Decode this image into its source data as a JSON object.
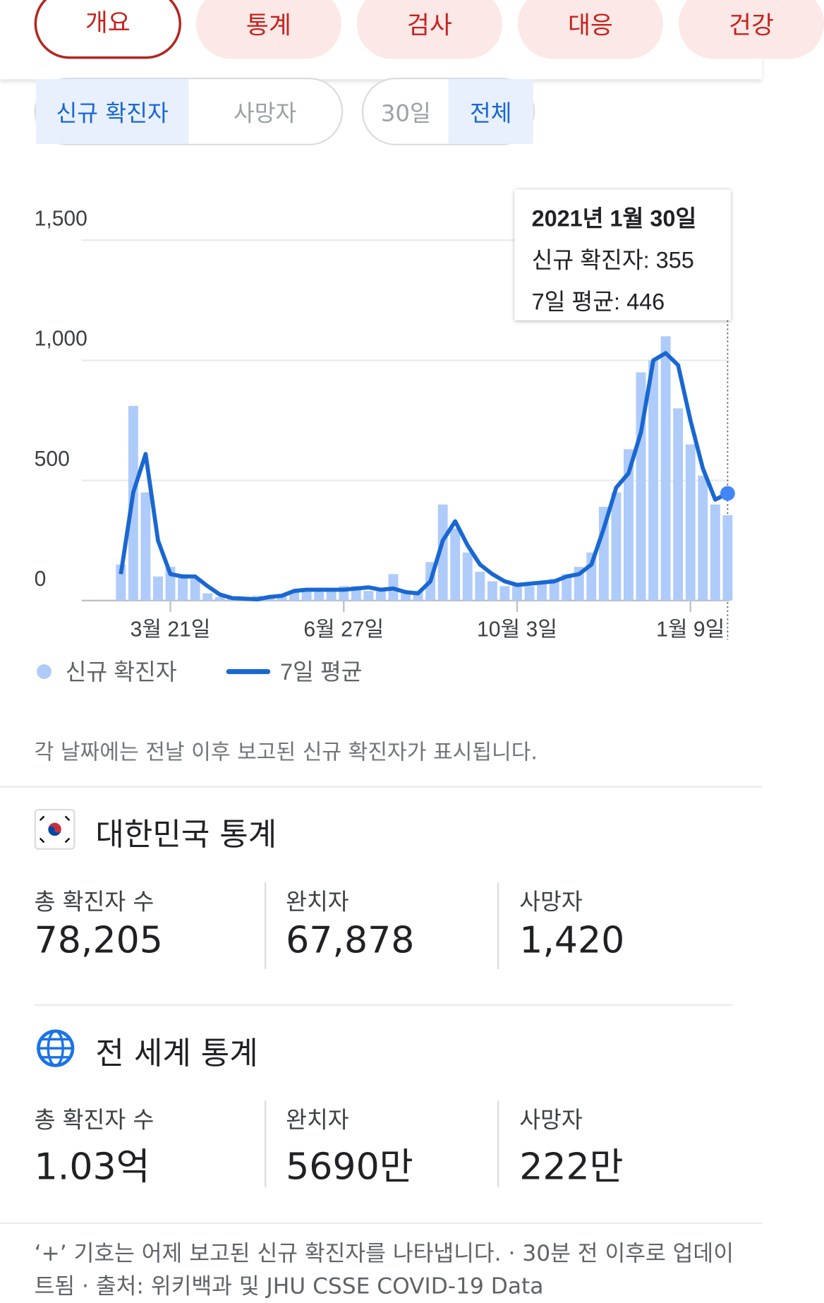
{
  "tabs": [
    "개요",
    "통계",
    "검사",
    "대응",
    "건강"
  ],
  "metric_toggle": [
    "신규 확진자",
    "사망자"
  ],
  "range_toggle": [
    "30일",
    "전체"
  ],
  "chart_data": {
    "type": "bar-line",
    "categories": [
      null,
      null,
      null,
      null,
      "3월 21일",
      null,
      null,
      null,
      null,
      null,
      null,
      null,
      null,
      null,
      null,
      null,
      null,
      null,
      "6월 27일",
      null,
      null,
      null,
      null,
      null,
      null,
      null,
      null,
      null,
      null,
      null,
      null,
      null,
      "10월 3일",
      null,
      null,
      null,
      null,
      null,
      null,
      null,
      null,
      null,
      null,
      null,
      null,
      null,
      "1월 9일",
      null,
      null,
      null
    ],
    "series": [
      {
        "name": "신규 확진자",
        "type": "bar",
        "color": "#aecbfa",
        "values": [
          150,
          810,
          450,
          100,
          140,
          110,
          90,
          30,
          15,
          10,
          10,
          20,
          20,
          25,
          40,
          50,
          40,
          50,
          60,
          60,
          40,
          40,
          110,
          30,
          40,
          160,
          400,
          300,
          200,
          120,
          80,
          60,
          70,
          60,
          80,
          90,
          110,
          140,
          200,
          390,
          450,
          630,
          950,
          1000,
          1100,
          800,
          650,
          520,
          400,
          355
        ]
      },
      {
        "name": "7일 평균",
        "type": "line",
        "color": "#1967d2",
        "values": [
          110,
          450,
          610,
          250,
          110,
          100,
          100,
          60,
          25,
          10,
          8,
          5,
          15,
          20,
          40,
          45,
          45,
          45,
          45,
          50,
          55,
          45,
          50,
          35,
          30,
          80,
          250,
          330,
          230,
          150,
          110,
          80,
          65,
          70,
          75,
          80,
          100,
          110,
          150,
          300,
          470,
          530,
          700,
          1000,
          1030,
          980,
          750,
          550,
          420,
          446
        ]
      }
    ],
    "ylim": [
      0,
      1500
    ],
    "yticks": [
      0,
      500,
      {
        "value": 1000,
        "label": "1,000"
      },
      {
        "value": 1500,
        "label": "1,500"
      }
    ],
    "grid": true,
    "tooltip": {
      "title": "2021년 1월 30일",
      "labels": [
        "신규 확진자:",
        "7일 평균:"
      ]
    }
  },
  "note": "각 날짜에는 전날 이후 보고된 신규 확진자가 표시됩니다.",
  "korea": {
    "title": "대한민국 통계",
    "stats": [
      {
        "label": "총 확진자 수",
        "value": "78,205"
      },
      {
        "label": "완치자",
        "value": "67,878"
      },
      {
        "label": "사망자",
        "value": "1,420"
      }
    ]
  },
  "world": {
    "title": "전 세계 통계",
    "stats": [
      {
        "label": "총 확진자 수",
        "value": "1.03억"
      },
      {
        "label": "완치자",
        "value": "5690만"
      },
      {
        "label": "사망자",
        "value": "222만"
      }
    ]
  },
  "footer": "‘+’ 기호는 어제 보고된 신규 확진자를 나타냅니다. · 30분 전 이후로 업데이트됨 · 출처: 위키백과 및 JHU CSSE COVID-19 Data"
}
